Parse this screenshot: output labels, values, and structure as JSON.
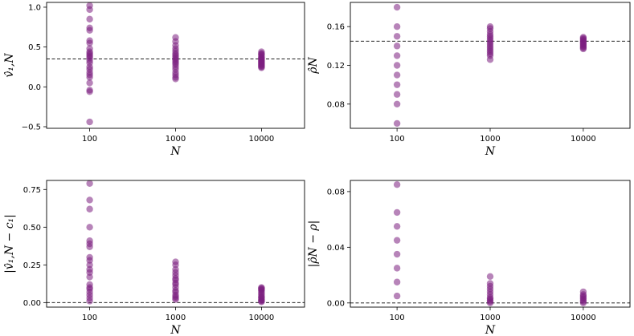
{
  "chart_data": [
    {
      "type": "scatter",
      "ylabel": "v̂₁,N",
      "xlabel": "N",
      "categories": [
        "100",
        "1000",
        "10000"
      ],
      "yticks": [
        -0.5,
        0.0,
        0.5,
        1.0
      ],
      "ytick_labels": [
        "−0.5",
        "0.0",
        "0.5",
        "1.0"
      ],
      "ylim": [
        -0.52,
        1.06
      ],
      "reference_line": 0.35,
      "color": "#7b1f7f",
      "series": [
        {
          "name": "100",
          "values": [
            1.02,
            0.97,
            0.85,
            0.74,
            0.71,
            0.58,
            0.55,
            0.48,
            0.44,
            0.42,
            0.4,
            0.38,
            0.36,
            0.33,
            0.3,
            0.25,
            0.22,
            0.18,
            0.15,
            0.12,
            0.05,
            -0.04,
            -0.06,
            -0.44
          ]
        },
        {
          "name": "1000",
          "values": [
            0.62,
            0.57,
            0.52,
            0.48,
            0.45,
            0.42,
            0.4,
            0.38,
            0.36,
            0.34,
            0.32,
            0.3,
            0.28,
            0.25,
            0.22,
            0.18,
            0.15,
            0.12,
            0.1
          ]
        },
        {
          "name": "10000",
          "values": [
            0.44,
            0.42,
            0.41,
            0.4,
            0.38,
            0.37,
            0.36,
            0.35,
            0.34,
            0.33,
            0.32,
            0.31,
            0.3,
            0.29,
            0.28,
            0.27,
            0.26,
            0.25,
            0.24
          ]
        }
      ]
    },
    {
      "type": "scatter",
      "ylabel": "ρ̂N",
      "xlabel": "N",
      "categories": [
        "100",
        "1000",
        "10000"
      ],
      "yticks": [
        0.08,
        0.12,
        0.16
      ],
      "ytick_labels": [
        "0.08",
        "0.12",
        "0.16"
      ],
      "ylim": [
        0.055,
        0.185
      ],
      "reference_line": 0.145,
      "color": "#7b1f7f",
      "series": [
        {
          "name": "100",
          "values": [
            0.18,
            0.16,
            0.15,
            0.14,
            0.13,
            0.12,
            0.11,
            0.1,
            0.09,
            0.08,
            0.06
          ]
        },
        {
          "name": "1000",
          "values": [
            0.16,
            0.158,
            0.155,
            0.152,
            0.15,
            0.148,
            0.146,
            0.144,
            0.142,
            0.14,
            0.138,
            0.136,
            0.134,
            0.132,
            0.13,
            0.126
          ]
        },
        {
          "name": "10000",
          "values": [
            0.149,
            0.148,
            0.147,
            0.146,
            0.145,
            0.144,
            0.143,
            0.142,
            0.141,
            0.14,
            0.139,
            0.138,
            0.137
          ]
        }
      ]
    },
    {
      "type": "scatter",
      "ylabel": "|v̂₁,N − c₁|",
      "xlabel": "N",
      "categories": [
        "100",
        "1000",
        "10000"
      ],
      "yticks": [
        0.0,
        0.25,
        0.5,
        0.75
      ],
      "ytick_labels": [
        "0.00",
        "0.25",
        "0.50",
        "0.75"
      ],
      "ylim": [
        -0.03,
        0.81
      ],
      "reference_line": 0.0,
      "color": "#7b1f7f",
      "series": [
        {
          "name": "100",
          "values": [
            0.79,
            0.68,
            0.62,
            0.5,
            0.41,
            0.39,
            0.37,
            0.3,
            0.28,
            0.25,
            0.22,
            0.2,
            0.17,
            0.12,
            0.1,
            0.09,
            0.07,
            0.05,
            0.03,
            0.01
          ]
        },
        {
          "name": "1000",
          "values": [
            0.27,
            0.25,
            0.22,
            0.2,
            0.18,
            0.16,
            0.15,
            0.13,
            0.12,
            0.1,
            0.08,
            0.07,
            0.05,
            0.04,
            0.03,
            0.02
          ]
        },
        {
          "name": "10000",
          "values": [
            0.1,
            0.095,
            0.09,
            0.085,
            0.08,
            0.07,
            0.06,
            0.05,
            0.04,
            0.035,
            0.03,
            0.02,
            0.015,
            0.01,
            0.005
          ]
        }
      ]
    },
    {
      "type": "scatter",
      "ylabel": "|ρ̂N − ρ|",
      "xlabel": "N",
      "categories": [
        "100",
        "1000",
        "10000"
      ],
      "yticks": [
        0.0,
        0.04,
        0.08
      ],
      "ytick_labels": [
        "0.00",
        "0.04",
        "0.08"
      ],
      "ylim": [
        -0.003,
        0.088
      ],
      "reference_line": 0.0,
      "color": "#7b1f7f",
      "series": [
        {
          "name": "100",
          "values": [
            0.085,
            0.065,
            0.055,
            0.045,
            0.035,
            0.025,
            0.015,
            0.005
          ]
        },
        {
          "name": "1000",
          "values": [
            0.019,
            0.014,
            0.012,
            0.01,
            0.008,
            0.006,
            0.004,
            0.003,
            0.002,
            0.001,
            0.0
          ]
        },
        {
          "name": "10000",
          "values": [
            0.008,
            0.006,
            0.005,
            0.004,
            0.003,
            0.002,
            0.001,
            0.0
          ]
        }
      ]
    }
  ]
}
